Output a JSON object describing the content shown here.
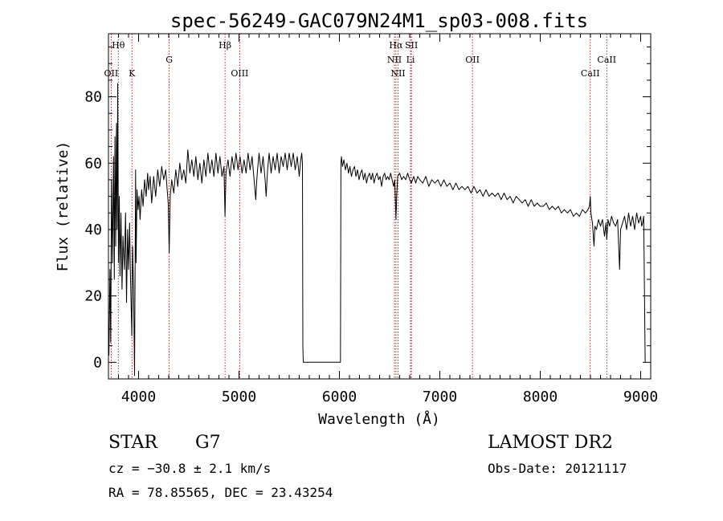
{
  "chart_data": {
    "type": "line",
    "title": "spec-56249-GAC079N24M1_sp03-008.fits",
    "xlabel": "Wavelength (Å)",
    "ylabel": "Flux (relative)",
    "xlim": [
      3700,
      9100
    ],
    "ylim": [
      -5,
      99
    ],
    "grid": false,
    "x_ticks": [
      4000,
      5000,
      6000,
      7000,
      8000,
      9000
    ],
    "y_ticks": [
      0,
      20,
      40,
      60,
      80
    ],
    "x_tick_labels": [
      "4000",
      "5000",
      "6000",
      "7000",
      "8000",
      "9000"
    ],
    "y_tick_labels": [
      "0",
      "20",
      "40",
      "60",
      "80"
    ],
    "line_color": "#000000",
    "marker_color": "#8b0000",
    "lines": [
      {
        "label": "Hθ",
        "x": 3798,
        "row": 0
      },
      {
        "label": "OII",
        "x": 3727,
        "row": 2
      },
      {
        "label": "K",
        "x": 3934,
        "row": 2
      },
      {
        "label": "G",
        "x": 4305,
        "row": 1
      },
      {
        "label": "Hβ",
        "x": 4861,
        "row": 0
      },
      {
        "label": "OIII",
        "x": 5007,
        "row": 2
      },
      {
        "label": "Hα",
        "x": 6563,
        "row": 0
      },
      {
        "label": "NII",
        "x": 6548,
        "row": 1
      },
      {
        "label": "NII",
        "x": 6584,
        "row": 2
      },
      {
        "label": "SII",
        "x": 6717,
        "row": 0
      },
      {
        "label": "Li",
        "x": 6708,
        "row": 1
      },
      {
        "label": "OII",
        "x": 7325,
        "row": 1
      },
      {
        "label": "CaII",
        "x": 8498,
        "row": 2
      },
      {
        "label": "CaII",
        "x": 8662,
        "row": 1
      }
    ],
    "series": [
      {
        "values": [
          [
            3705,
            2
          ],
          [
            3715,
            28
          ],
          [
            3722,
            6
          ],
          [
            3730,
            55
          ],
          [
            3740,
            30
          ],
          [
            3750,
            62
          ],
          [
            3758,
            25
          ],
          [
            3765,
            68
          ],
          [
            3772,
            35
          ],
          [
            3780,
            72
          ],
          [
            3786,
            40
          ],
          [
            3792,
            84
          ],
          [
            3800,
            30
          ],
          [
            3808,
            50
          ],
          [
            3815,
            26
          ],
          [
            3825,
            45
          ],
          [
            3835,
            22
          ],
          [
            3845,
            38
          ],
          [
            3858,
            28
          ],
          [
            3870,
            45
          ],
          [
            3880,
            18
          ],
          [
            3890,
            40
          ],
          [
            3900,
            28
          ],
          [
            3910,
            42
          ],
          [
            3920,
            25
          ],
          [
            3933,
            8
          ],
          [
            3940,
            35
          ],
          [
            3950,
            22
          ],
          [
            3960,
            -4
          ],
          [
            3970,
            58
          ],
          [
            3975,
            30
          ],
          [
            3985,
            52
          ],
          [
            3995,
            46
          ],
          [
            4005,
            50
          ],
          [
            4015,
            43
          ],
          [
            4030,
            52
          ],
          [
            4045,
            47
          ],
          [
            4060,
            55
          ],
          [
            4075,
            50
          ],
          [
            4090,
            57
          ],
          [
            4100,
            52
          ],
          [
            4115,
            56
          ],
          [
            4130,
            48
          ],
          [
            4150,
            56
          ],
          [
            4170,
            50
          ],
          [
            4190,
            58
          ],
          [
            4210,
            53
          ],
          [
            4230,
            59
          ],
          [
            4250,
            55
          ],
          [
            4270,
            58
          ],
          [
            4285,
            52
          ],
          [
            4295,
            48
          ],
          [
            4305,
            33
          ],
          [
            4315,
            50
          ],
          [
            4330,
            55
          ],
          [
            4350,
            51
          ],
          [
            4370,
            58
          ],
          [
            4390,
            53
          ],
          [
            4410,
            60
          ],
          [
            4430,
            55
          ],
          [
            4450,
            58
          ],
          [
            4470,
            54
          ],
          [
            4490,
            64
          ],
          [
            4510,
            57
          ],
          [
            4530,
            61
          ],
          [
            4550,
            56
          ],
          [
            4570,
            62
          ],
          [
            4590,
            55
          ],
          [
            4610,
            60
          ],
          [
            4630,
            54
          ],
          [
            4650,
            61
          ],
          [
            4670,
            56
          ],
          [
            4690,
            63
          ],
          [
            4710,
            57
          ],
          [
            4730,
            61
          ],
          [
            4750,
            56
          ],
          [
            4770,
            63
          ],
          [
            4790,
            57
          ],
          [
            4810,
            62
          ],
          [
            4830,
            56
          ],
          [
            4850,
            59
          ],
          [
            4861,
            44
          ],
          [
            4870,
            57
          ],
          [
            4890,
            61
          ],
          [
            4910,
            56
          ],
          [
            4930,
            62
          ],
          [
            4950,
            58
          ],
          [
            4970,
            63
          ],
          [
            4990,
            58
          ],
          [
            5010,
            62
          ],
          [
            5030,
            57
          ],
          [
            5050,
            61
          ],
          [
            5070,
            57
          ],
          [
            5090,
            63
          ],
          [
            5110,
            58
          ],
          [
            5130,
            62
          ],
          [
            5150,
            55
          ],
          [
            5167,
            49
          ],
          [
            5175,
            54
          ],
          [
            5185,
            58
          ],
          [
            5200,
            63
          ],
          [
            5220,
            57
          ],
          [
            5240,
            62
          ],
          [
            5260,
            55
          ],
          [
            5270,
            50
          ],
          [
            5285,
            58
          ],
          [
            5300,
            63
          ],
          [
            5320,
            57
          ],
          [
            5340,
            62
          ],
          [
            5360,
            58
          ],
          [
            5380,
            63
          ],
          [
            5400,
            57
          ],
          [
            5420,
            62
          ],
          [
            5440,
            59
          ],
          [
            5460,
            63
          ],
          [
            5480,
            58
          ],
          [
            5500,
            63
          ],
          [
            5520,
            59
          ],
          [
            5540,
            63
          ],
          [
            5560,
            58
          ],
          [
            5580,
            62
          ],
          [
            5600,
            56
          ],
          [
            5615,
            61
          ],
          [
            5625,
            63
          ],
          [
            5632,
            60
          ],
          [
            5636,
            5
          ],
          [
            5640,
            0
          ],
          [
            5700,
            0
          ],
          [
            5800,
            0
          ],
          [
            5900,
            0
          ],
          [
            6000,
            0
          ],
          [
            6010,
            0
          ],
          [
            6015,
            60
          ],
          [
            6020,
            62
          ],
          [
            6030,
            59
          ],
          [
            6045,
            61
          ],
          [
            6060,
            58
          ],
          [
            6075,
            60
          ],
          [
            6090,
            57
          ],
          [
            6105,
            59
          ],
          [
            6120,
            56
          ],
          [
            6135,
            58
          ],
          [
            6150,
            59
          ],
          [
            6165,
            56
          ],
          [
            6180,
            58
          ],
          [
            6195,
            55
          ],
          [
            6210,
            57
          ],
          [
            6225,
            58
          ],
          [
            6240,
            55
          ],
          [
            6255,
            57
          ],
          [
            6270,
            54
          ],
          [
            6285,
            56
          ],
          [
            6300,
            57
          ],
          [
            6315,
            55
          ],
          [
            6330,
            57
          ],
          [
            6345,
            54
          ],
          [
            6360,
            56
          ],
          [
            6375,
            57
          ],
          [
            6390,
            55
          ],
          [
            6405,
            56
          ],
          [
            6420,
            53
          ],
          [
            6435,
            56
          ],
          [
            6450,
            57
          ],
          [
            6465,
            55
          ],
          [
            6480,
            56
          ],
          [
            6495,
            55
          ],
          [
            6510,
            57
          ],
          [
            6525,
            55
          ],
          [
            6540,
            53
          ],
          [
            6550,
            55
          ],
          [
            6556,
            50
          ],
          [
            6563,
            43
          ],
          [
            6570,
            50
          ],
          [
            6580,
            56
          ],
          [
            6600,
            57
          ],
          [
            6620,
            55
          ],
          [
            6640,
            56
          ],
          [
            6660,
            55
          ],
          [
            6680,
            57
          ],
          [
            6700,
            55
          ],
          [
            6717,
            54
          ],
          [
            6740,
            56
          ],
          [
            6760,
            54
          ],
          [
            6780,
            56
          ],
          [
            6800,
            55
          ],
          [
            6830,
            54
          ],
          [
            6860,
            56
          ],
          [
            6890,
            53
          ],
          [
            6920,
            55
          ],
          [
            6950,
            54
          ],
          [
            6980,
            55
          ],
          [
            7010,
            53
          ],
          [
            7040,
            55
          ],
          [
            7070,
            53
          ],
          [
            7100,
            54
          ],
          [
            7130,
            52
          ],
          [
            7160,
            54
          ],
          [
            7190,
            52
          ],
          [
            7220,
            53
          ],
          [
            7250,
            52
          ],
          [
            7280,
            53
          ],
          [
            7310,
            51
          ],
          [
            7340,
            53
          ],
          [
            7370,
            51
          ],
          [
            7400,
            52
          ],
          [
            7430,
            50
          ],
          [
            7460,
            52
          ],
          [
            7490,
            50
          ],
          [
            7520,
            51
          ],
          [
            7550,
            50
          ],
          [
            7580,
            51
          ],
          [
            7610,
            49
          ],
          [
            7640,
            51
          ],
          [
            7670,
            49
          ],
          [
            7700,
            50
          ],
          [
            7730,
            48
          ],
          [
            7760,
            50
          ],
          [
            7790,
            49
          ],
          [
            7820,
            48
          ],
          [
            7850,
            49
          ],
          [
            7880,
            47
          ],
          [
            7910,
            49
          ],
          [
            7940,
            47
          ],
          [
            7970,
            48
          ],
          [
            8000,
            47
          ],
          [
            8030,
            47
          ],
          [
            8060,
            48
          ],
          [
            8090,
            46
          ],
          [
            8120,
            47
          ],
          [
            8150,
            46
          ],
          [
            8180,
            47
          ],
          [
            8210,
            45
          ],
          [
            8240,
            46
          ],
          [
            8270,
            45
          ],
          [
            8300,
            46
          ],
          [
            8330,
            44
          ],
          [
            8360,
            45
          ],
          [
            8390,
            44
          ],
          [
            8420,
            46
          ],
          [
            8450,
            45
          ],
          [
            8475,
            46
          ],
          [
            8490,
            47
          ],
          [
            8498,
            50
          ],
          [
            8505,
            45
          ],
          [
            8520,
            42
          ],
          [
            8535,
            35
          ],
          [
            8545,
            41
          ],
          [
            8560,
            40
          ],
          [
            8580,
            43
          ],
          [
            8600,
            41
          ],
          [
            8620,
            43
          ],
          [
            8640,
            38
          ],
          [
            8655,
            42
          ],
          [
            8662,
            37
          ],
          [
            8675,
            43
          ],
          [
            8690,
            41
          ],
          [
            8710,
            44
          ],
          [
            8730,
            42
          ],
          [
            8750,
            41
          ],
          [
            8770,
            43
          ],
          [
            8790,
            28
          ],
          [
            8800,
            40
          ],
          [
            8820,
            42
          ],
          [
            8840,
            44
          ],
          [
            8860,
            40
          ],
          [
            8880,
            45
          ],
          [
            8900,
            41
          ],
          [
            8920,
            44
          ],
          [
            8940,
            40
          ],
          [
            8960,
            45
          ],
          [
            8980,
            42
          ],
          [
            9000,
            44
          ],
          [
            9010,
            41
          ],
          [
            9020,
            42
          ],
          [
            9030,
            44
          ],
          [
            9045,
            0
          ]
        ]
      }
    ]
  },
  "footer": {
    "class_label": "STAR",
    "subclass": "G7",
    "survey": "LAMOST DR2",
    "cz": "cz = −30.8 ± 2.1 km/s",
    "obs_date": "Obs-Date: 20121117",
    "coords": "RA =  78.85565, DEC =  23.43254"
  }
}
